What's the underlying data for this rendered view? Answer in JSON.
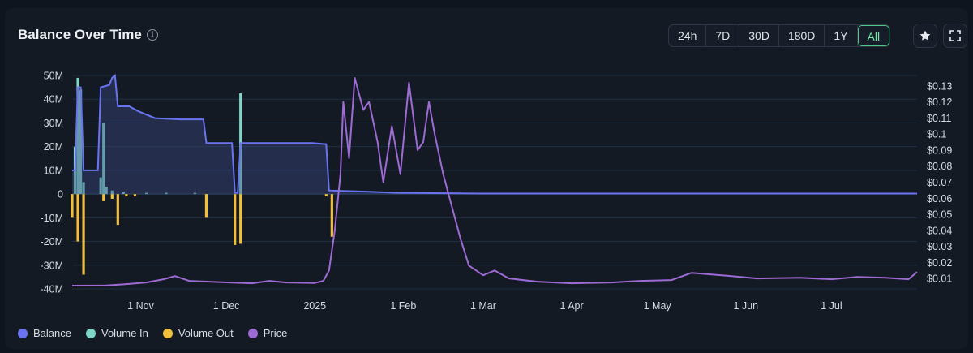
{
  "header": {
    "title": "Balance Over Time",
    "ranges": [
      "24h",
      "7D",
      "30D",
      "180D",
      "1Y",
      "All"
    ],
    "active_range": "All"
  },
  "icons": {
    "info": "info-icon",
    "star": "star-icon",
    "fullscreen": "fullscreen-icon"
  },
  "legend": [
    {
      "label": "Balance",
      "color": "#6b74f0"
    },
    {
      "label": "Volume In",
      "color": "#7fd6c8"
    },
    {
      "label": "Volume Out",
      "color": "#f2bf3c"
    },
    {
      "label": "Price",
      "color": "#9e6ad3"
    }
  ],
  "chart_data": {
    "type": "line",
    "x_range": [
      "2024-10-08",
      "2025-07-31"
    ],
    "x_ticks": [
      {
        "date": "2024-11-01",
        "label": "1 Nov"
      },
      {
        "date": "2024-12-01",
        "label": "1 Dec"
      },
      {
        "date": "2025-01-01",
        "label": "2025"
      },
      {
        "date": "2025-02-01",
        "label": "1 Feb"
      },
      {
        "date": "2025-03-01",
        "label": "1 Mar"
      },
      {
        "date": "2025-04-01",
        "label": "1 Apr"
      },
      {
        "date": "2025-05-01",
        "label": "1 May"
      },
      {
        "date": "2025-06-01",
        "label": "1 Jun"
      },
      {
        "date": "2025-07-01",
        "label": "1 Jul"
      }
    ],
    "y_left": {
      "range": [
        -40,
        50
      ],
      "ticks": [
        50,
        40,
        30,
        20,
        10,
        0,
        -10,
        -20,
        -30,
        -40
      ],
      "tick_labels": [
        "50M",
        "40M",
        "30M",
        "20M",
        "10M",
        "0",
        "-10M",
        "-20M",
        "-30M",
        "-40M"
      ],
      "unit": "M"
    },
    "y_right": {
      "range": [
        0.0035,
        0.1365
      ],
      "ticks": [
        0.13,
        0.12,
        0.11,
        0.1,
        0.09,
        0.08,
        0.07,
        0.06,
        0.05,
        0.04,
        0.03,
        0.02,
        0.01
      ],
      "tick_labels": [
        "$0.13",
        "$0.12",
        "$0.11",
        "$0.1",
        "$0.09",
        "$0.08",
        "$0.07",
        "$0.06",
        "$0.05",
        "$0.04",
        "$0.03",
        "$0.02",
        "$0.01"
      ]
    },
    "grid": true,
    "series": [
      {
        "name": "Balance",
        "type": "area",
        "axis": "left",
        "color": "#6b74f0",
        "points": [
          [
            "2024-10-08",
            10
          ],
          [
            "2024-10-09",
            10
          ],
          [
            "2024-10-10",
            45
          ],
          [
            "2024-10-11",
            45
          ],
          [
            "2024-10-12",
            10
          ],
          [
            "2024-10-17",
            10
          ],
          [
            "2024-10-18",
            45
          ],
          [
            "2024-10-21",
            46
          ],
          [
            "2024-10-22",
            49
          ],
          [
            "2024-10-23",
            50
          ],
          [
            "2024-10-24",
            37
          ],
          [
            "2024-10-28",
            37
          ],
          [
            "2024-10-31",
            35
          ],
          [
            "2024-11-06",
            32
          ],
          [
            "2024-11-15",
            31.5
          ],
          [
            "2024-11-23",
            31.5
          ],
          [
            "2024-11-24",
            21.5
          ],
          [
            "2024-12-03",
            21.5
          ],
          [
            "2024-12-04",
            0.5
          ],
          [
            "2024-12-05",
            0.5
          ],
          [
            "2024-12-06",
            21.5
          ],
          [
            "2024-12-31",
            21.5
          ],
          [
            "2025-01-05",
            21
          ],
          [
            "2025-01-06",
            1.5
          ],
          [
            "2025-01-20",
            1
          ],
          [
            "2025-01-30",
            0.5
          ],
          [
            "2025-02-28",
            0.2
          ],
          [
            "2025-07-31",
            0.2
          ]
        ]
      },
      {
        "name": "Volume In",
        "type": "bar",
        "axis": "left",
        "color": "#7fd6c8",
        "points": [
          [
            "2024-10-09",
            20
          ],
          [
            "2024-10-10",
            49
          ],
          [
            "2024-10-11",
            44
          ],
          [
            "2024-10-12",
            5
          ],
          [
            "2024-10-18",
            7
          ],
          [
            "2024-10-19",
            30
          ],
          [
            "2024-10-20",
            3
          ],
          [
            "2024-10-22",
            1.5
          ],
          [
            "2024-10-26",
            1
          ],
          [
            "2024-11-03",
            0.5
          ],
          [
            "2024-11-10",
            0.5
          ],
          [
            "2024-11-20",
            0.5
          ],
          [
            "2024-12-06",
            42.5
          ]
        ]
      },
      {
        "name": "Volume Out",
        "type": "bar",
        "axis": "left",
        "color": "#f2bf3c",
        "points": [
          [
            "2024-10-08",
            -10
          ],
          [
            "2024-10-10",
            -20
          ],
          [
            "2024-10-12",
            -34
          ],
          [
            "2024-10-19",
            -3
          ],
          [
            "2024-10-22",
            -2
          ],
          [
            "2024-10-24",
            -13
          ],
          [
            "2024-10-27",
            -1
          ],
          [
            "2024-10-30",
            -1
          ],
          [
            "2024-11-24",
            -10
          ],
          [
            "2024-12-04",
            -21.5
          ],
          [
            "2024-12-06",
            -21
          ],
          [
            "2025-01-05",
            -1
          ],
          [
            "2025-01-07",
            -18
          ]
        ]
      },
      {
        "name": "Price",
        "type": "line",
        "axis": "right",
        "color": "#9e6ad3",
        "points": [
          [
            "2024-10-08",
            0.0055
          ],
          [
            "2024-10-20",
            0.0056
          ],
          [
            "2024-10-27",
            0.0065
          ],
          [
            "2024-11-03",
            0.0075
          ],
          [
            "2024-11-09",
            0.0095
          ],
          [
            "2024-11-13",
            0.0115
          ],
          [
            "2024-11-18",
            0.0085
          ],
          [
            "2024-11-25",
            0.008
          ],
          [
            "2024-12-02",
            0.0075
          ],
          [
            "2024-12-10",
            0.007
          ],
          [
            "2024-12-16",
            0.0085
          ],
          [
            "2024-12-22",
            0.0075
          ],
          [
            "2025-01-01",
            0.0072
          ],
          [
            "2025-01-04",
            0.0085
          ],
          [
            "2025-01-06",
            0.015
          ],
          [
            "2025-01-08",
            0.04
          ],
          [
            "2025-01-10",
            0.075
          ],
          [
            "2025-01-11",
            0.12
          ],
          [
            "2025-01-13",
            0.085
          ],
          [
            "2025-01-15",
            0.135
          ],
          [
            "2025-01-18",
            0.115
          ],
          [
            "2025-01-20",
            0.12
          ],
          [
            "2025-01-23",
            0.095
          ],
          [
            "2025-01-25",
            0.07
          ],
          [
            "2025-01-28",
            0.105
          ],
          [
            "2025-01-31",
            0.075
          ],
          [
            "2025-02-03",
            0.132
          ],
          [
            "2025-02-06",
            0.09
          ],
          [
            "2025-02-08",
            0.095
          ],
          [
            "2025-02-10",
            0.12
          ],
          [
            "2025-02-12",
            0.1
          ],
          [
            "2025-02-15",
            0.075
          ],
          [
            "2025-02-18",
            0.055
          ],
          [
            "2025-02-21",
            0.035
          ],
          [
            "2025-02-24",
            0.018
          ],
          [
            "2025-03-01",
            0.012
          ],
          [
            "2025-03-05",
            0.015
          ],
          [
            "2025-03-10",
            0.01
          ],
          [
            "2025-03-20",
            0.008
          ],
          [
            "2025-04-01",
            0.007
          ],
          [
            "2025-04-15",
            0.0075
          ],
          [
            "2025-04-25",
            0.0085
          ],
          [
            "2025-05-06",
            0.009
          ],
          [
            "2025-05-13",
            0.0135
          ],
          [
            "2025-05-20",
            0.0125
          ],
          [
            "2025-05-27",
            0.0115
          ],
          [
            "2025-06-05",
            0.01
          ],
          [
            "2025-06-20",
            0.0105
          ],
          [
            "2025-07-01",
            0.0095
          ],
          [
            "2025-07-10",
            0.011
          ],
          [
            "2025-07-20",
            0.0105
          ],
          [
            "2025-07-28",
            0.0095
          ],
          [
            "2025-07-31",
            0.014
          ]
        ]
      }
    ]
  }
}
